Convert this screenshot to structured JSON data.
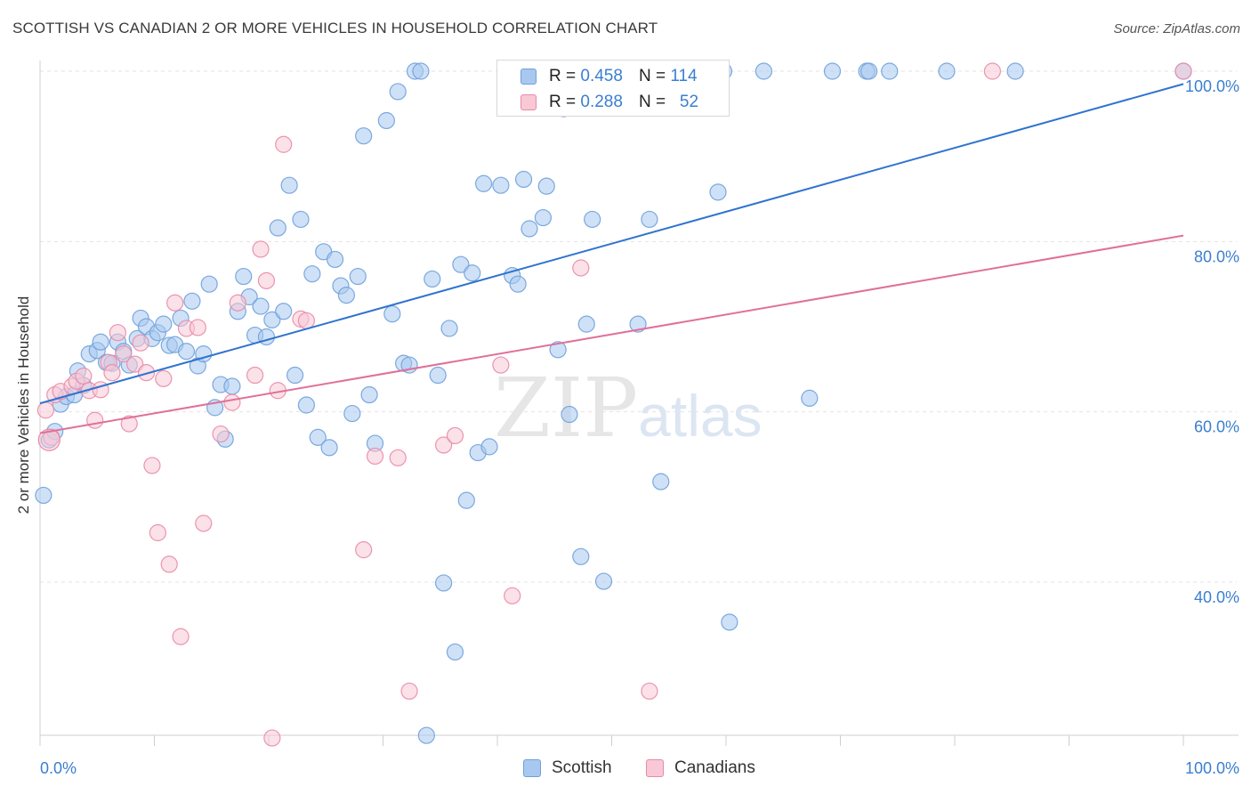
{
  "header": {
    "title": "SCOTTISH VS CANADIAN 2 OR MORE VEHICLES IN HOUSEHOLD CORRELATION CHART",
    "source": "Source: ZipAtlas.com"
  },
  "watermark": {
    "zip": "ZIP",
    "atlas": "atlas"
  },
  "legend": {
    "rows": [
      {
        "r_label": "R =",
        "r_value": "0.458",
        "n_label": "N =",
        "n_value": "114",
        "color": "#a8c8ef",
        "border": "#6fa0db"
      },
      {
        "r_label": "R =",
        "r_value": "0.288",
        "n_label": "N =",
        "n_value": "52",
        "color": "#f8c8d6",
        "border": "#e98aa8"
      }
    ]
  },
  "bottom_legend": {
    "scottish": "Scottish",
    "canadians": "Canadians"
  },
  "axis": {
    "ylabel": "2 or more Vehicles in Household",
    "x_left": "0.0%",
    "x_right": "100.0%",
    "y_ticks": [
      "100.0%",
      "80.0%",
      "60.0%",
      "40.0%"
    ]
  },
  "chart_data": {
    "type": "scatter",
    "title": "SCOTTISH VS CANADIAN 2 OR MORE VEHICLES IN HOUSEHOLD CORRELATION CHART",
    "xlabel": "",
    "ylabel": "2 or more Vehicles in Household",
    "xlim": [
      0,
      100
    ],
    "ylim": [
      20,
      101
    ],
    "y_tick_values": [
      100,
      80,
      60,
      40
    ],
    "grid": true,
    "legend_position": "top-center",
    "series": [
      {
        "name": "Scottish",
        "color": "#6fa0db",
        "fill": "#a8c8ef",
        "trend": {
          "x": [
            0,
            100
          ],
          "y": [
            61.0,
            98.5
          ]
        },
        "points": [
          [
            0.3,
            50.2
          ],
          [
            0.8,
            56.7
          ],
          [
            1.3,
            57.7
          ],
          [
            1.8,
            60.9
          ],
          [
            2.3,
            61.8
          ],
          [
            3.0,
            62.0
          ],
          [
            3.3,
            64.8
          ],
          [
            3.8,
            63.1
          ],
          [
            4.3,
            66.8
          ],
          [
            5.0,
            67.2
          ],
          [
            5.3,
            68.2
          ],
          [
            5.8,
            65.8
          ],
          [
            6.3,
            65.7
          ],
          [
            6.8,
            68.2
          ],
          [
            7.3,
            67.1
          ],
          [
            7.8,
            65.5
          ],
          [
            8.5,
            68.6
          ],
          [
            8.8,
            71.0
          ],
          [
            9.3,
            70.0
          ],
          [
            9.8,
            68.6
          ],
          [
            10.3,
            69.3
          ],
          [
            10.8,
            70.3
          ],
          [
            11.3,
            67.8
          ],
          [
            11.8,
            67.9
          ],
          [
            12.3,
            71.0
          ],
          [
            12.8,
            67.1
          ],
          [
            13.3,
            73.0
          ],
          [
            13.8,
            65.4
          ],
          [
            14.3,
            66.8
          ],
          [
            14.8,
            75.0
          ],
          [
            15.3,
            60.5
          ],
          [
            15.8,
            63.2
          ],
          [
            16.2,
            56.8
          ],
          [
            16.8,
            63.0
          ],
          [
            17.3,
            71.8
          ],
          [
            17.8,
            75.9
          ],
          [
            18.3,
            73.5
          ],
          [
            18.8,
            69.0
          ],
          [
            19.3,
            72.4
          ],
          [
            19.8,
            68.8
          ],
          [
            20.3,
            70.8
          ],
          [
            20.8,
            81.6
          ],
          [
            21.3,
            71.8
          ],
          [
            21.8,
            86.6
          ],
          [
            22.3,
            64.3
          ],
          [
            22.8,
            82.6
          ],
          [
            23.3,
            60.8
          ],
          [
            23.8,
            76.2
          ],
          [
            24.3,
            57.0
          ],
          [
            24.8,
            78.8
          ],
          [
            25.3,
            55.8
          ],
          [
            25.8,
            77.9
          ],
          [
            26.3,
            74.8
          ],
          [
            26.8,
            73.7
          ],
          [
            27.3,
            59.8
          ],
          [
            27.8,
            75.9
          ],
          [
            28.3,
            92.4
          ],
          [
            28.8,
            62.0
          ],
          [
            29.3,
            56.3
          ],
          [
            30.3,
            94.2
          ],
          [
            30.8,
            71.5
          ],
          [
            31.3,
            97.6
          ],
          [
            31.8,
            65.7
          ],
          [
            32.3,
            65.5
          ],
          [
            32.8,
            100
          ],
          [
            33.3,
            100
          ],
          [
            33.8,
            22.0
          ],
          [
            34.3,
            75.6
          ],
          [
            34.8,
            64.3
          ],
          [
            35.3,
            39.9
          ],
          [
            35.8,
            69.8
          ],
          [
            36.3,
            31.8
          ],
          [
            36.8,
            77.3
          ],
          [
            37.3,
            49.6
          ],
          [
            37.8,
            76.3
          ],
          [
            38.3,
            55.2
          ],
          [
            38.8,
            86.8
          ],
          [
            39.3,
            55.9
          ],
          [
            40.3,
            86.6
          ],
          [
            41.3,
            76.0
          ],
          [
            41.8,
            75.0
          ],
          [
            42.3,
            87.3
          ],
          [
            42.8,
            81.5
          ],
          [
            44.0,
            82.8
          ],
          [
            44.3,
            86.5
          ],
          [
            45.3,
            67.3
          ],
          [
            46.3,
            59.7
          ],
          [
            45.8,
            95.6
          ],
          [
            47.3,
            43.0
          ],
          [
            47.8,
            70.3
          ],
          [
            48.3,
            82.6
          ],
          [
            49.3,
            40.1
          ],
          [
            52.3,
            70.3
          ],
          [
            53.3,
            82.6
          ],
          [
            54.3,
            51.8
          ],
          [
            55.3,
            100
          ],
          [
            57.3,
            100
          ],
          [
            59.3,
            85.8
          ],
          [
            59.8,
            100
          ],
          [
            60.3,
            35.3
          ],
          [
            63.3,
            100
          ],
          [
            67.3,
            61.6
          ],
          [
            69.3,
            100
          ],
          [
            72.3,
            100
          ],
          [
            72.5,
            100
          ],
          [
            74.3,
            100
          ],
          [
            79.3,
            100
          ],
          [
            85.3,
            100
          ],
          [
            100,
            100
          ]
        ]
      },
      {
        "name": "Canadians",
        "color": "#e98aa8",
        "fill": "#f8c8d6",
        "trend": {
          "x": [
            0,
            100
          ],
          "y": [
            57.5,
            80.7
          ]
        },
        "points": [
          [
            0.5,
            60.2
          ],
          [
            1.0,
            57.0
          ],
          [
            1.3,
            62.0
          ],
          [
            1.8,
            62.4
          ],
          [
            2.8,
            63.0
          ],
          [
            3.2,
            63.6
          ],
          [
            3.8,
            64.2
          ],
          [
            4.3,
            62.5
          ],
          [
            4.8,
            59.0
          ],
          [
            5.3,
            62.6
          ],
          [
            6.0,
            65.8
          ],
          [
            6.3,
            64.6
          ],
          [
            6.8,
            69.3
          ],
          [
            7.3,
            66.8
          ],
          [
            7.8,
            58.6
          ],
          [
            8.3,
            65.6
          ],
          [
            8.8,
            68.1
          ],
          [
            9.3,
            64.6
          ],
          [
            9.8,
            53.7
          ],
          [
            10.3,
            45.8
          ],
          [
            10.8,
            63.9
          ],
          [
            11.3,
            42.1
          ],
          [
            11.8,
            72.8
          ],
          [
            12.3,
            33.6
          ],
          [
            12.8,
            69.8
          ],
          [
            13.8,
            69.9
          ],
          [
            14.3,
            46.9
          ],
          [
            15.8,
            57.4
          ],
          [
            16.8,
            61.1
          ],
          [
            17.3,
            72.8
          ],
          [
            18.8,
            64.3
          ],
          [
            19.3,
            79.1
          ],
          [
            19.8,
            75.4
          ],
          [
            20.3,
            21.7
          ],
          [
            20.8,
            62.5
          ],
          [
            21.3,
            91.4
          ],
          [
            22.8,
            70.9
          ],
          [
            23.3,
            70.7
          ],
          [
            28.3,
            43.8
          ],
          [
            29.3,
            54.8
          ],
          [
            31.3,
            54.6
          ],
          [
            32.3,
            27.2
          ],
          [
            35.3,
            56.1
          ],
          [
            36.3,
            57.2
          ],
          [
            40.3,
            65.5
          ],
          [
            41.3,
            38.4
          ],
          [
            47.3,
            76.9
          ],
          [
            53.3,
            27.2
          ],
          [
            83.3,
            100
          ],
          [
            100,
            100
          ]
        ]
      }
    ]
  }
}
